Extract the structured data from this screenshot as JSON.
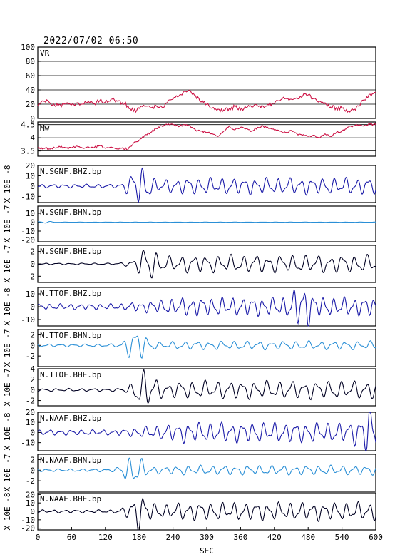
{
  "header": {
    "datetime": "2022/07/02 06:50"
  },
  "chart_data": {
    "type": "line",
    "x": {
      "label": "SEC",
      "range": [
        0,
        600
      ],
      "ticks": [
        0,
        60,
        120,
        180,
        240,
        300,
        360,
        420,
        480,
        540,
        600
      ]
    },
    "panels": [
      {
        "label": "VR",
        "ylabel": "",
        "ylim": [
          0,
          100
        ],
        "yticks": [
          0,
          20,
          40,
          60,
          80,
          100
        ],
        "grid": true,
        "color": "#cc1144",
        "x": [
          0,
          10,
          20,
          30,
          40,
          50,
          60,
          70,
          80,
          90,
          100,
          110,
          120,
          130,
          140,
          150,
          160,
          170,
          180,
          190,
          200,
          210,
          220,
          230,
          240,
          250,
          260,
          270,
          280,
          290,
          300,
          310,
          320,
          330,
          340,
          350,
          360,
          370,
          380,
          390,
          400,
          410,
          420,
          430,
          440,
          450,
          460,
          470,
          480,
          490,
          500,
          510,
          520,
          530,
          540,
          550,
          560,
          570,
          580,
          590,
          600
        ],
        "values": [
          18,
          24,
          23,
          18,
          19,
          20,
          19,
          22,
          20,
          24,
          21,
          25,
          23,
          27,
          25,
          22,
          18,
          10,
          14,
          17,
          15,
          18,
          16,
          22,
          27,
          31,
          38,
          40,
          32,
          23,
          20,
          15,
          13,
          12,
          14,
          16,
          12,
          15,
          16,
          18,
          17,
          19,
          21,
          25,
          28,
          27,
          29,
          31,
          33,
          28,
          24,
          22,
          16,
          15,
          14,
          9,
          12,
          17,
          26,
          34,
          36
        ]
      },
      {
        "label": "Mw",
        "ylabel": "",
        "ylim": [
          3.3,
          4.6
        ],
        "yticks": [
          3.5,
          4.0,
          4.5
        ],
        "grid": true,
        "color": "#cc1144",
        "x": [
          0,
          10,
          20,
          30,
          40,
          50,
          60,
          70,
          80,
          90,
          100,
          110,
          120,
          130,
          140,
          150,
          160,
          170,
          180,
          190,
          200,
          210,
          220,
          230,
          240,
          250,
          260,
          270,
          280,
          290,
          300,
          310,
          320,
          330,
          340,
          350,
          360,
          370,
          380,
          390,
          400,
          410,
          420,
          430,
          440,
          450,
          460,
          470,
          480,
          490,
          500,
          510,
          520,
          530,
          540,
          550,
          560,
          570,
          580,
          590,
          600
        ],
        "values": [
          3.63,
          3.6,
          3.58,
          3.62,
          3.65,
          3.6,
          3.62,
          3.68,
          3.6,
          3.65,
          3.62,
          3.7,
          3.6,
          3.65,
          3.58,
          3.62,
          3.55,
          3.8,
          3.9,
          4.1,
          4.2,
          4.35,
          4.45,
          4.5,
          4.5,
          4.42,
          4.5,
          4.45,
          4.3,
          4.25,
          4.2,
          4.15,
          4.05,
          4.25,
          4.45,
          4.3,
          4.4,
          4.35,
          4.25,
          4.4,
          4.45,
          4.35,
          4.3,
          4.25,
          4.2,
          4.28,
          4.15,
          4.1,
          4.05,
          4.1,
          4.0,
          4.15,
          4.05,
          4.2,
          4.25,
          4.4,
          4.45,
          4.5,
          4.48,
          4.52,
          4.5
        ]
      },
      {
        "label": "N.SGNF.BHZ.bp",
        "ylabel": "X 10E -8",
        "ylim": [
          -16,
          20
        ],
        "yticks": [
          -10,
          0,
          10,
          20
        ],
        "color": "#1a1aa8",
        "waveform": {
          "base": 2.0,
          "late": 9.0,
          "period": 20,
          "burst_at": 180,
          "burst_amp": 18
        }
      },
      {
        "label": "N.SGNF.BHN.bp",
        "ylabel": "X 10E -7",
        "ylim": [
          -22,
          18
        ],
        "yticks": [
          -20,
          -10,
          0,
          10
        ],
        "color": "#2a8fd6",
        "waveform": {
          "base": 0.2,
          "late": 0.2,
          "period": 25,
          "burst_at": 5,
          "burst_amp": 1.5
        }
      },
      {
        "label": "N.SGNF.BHE.bp",
        "ylabel": "X 10E -7",
        "ylim": [
          -3,
          3
        ],
        "yticks": [
          -2,
          0,
          2
        ],
        "color": "#000022",
        "waveform": {
          "base": 0.15,
          "late": 1.6,
          "period": 22,
          "burst_at": 195,
          "burst_amp": 2.4
        }
      },
      {
        "label": "N.TTOF.BHZ.bp",
        "ylabel": "X 10E -8",
        "ylim": [
          -15,
          15
        ],
        "yticks": [
          -10,
          0,
          10
        ],
        "color": "#1a1aa8",
        "waveform": {
          "base": 2.5,
          "late": 8.0,
          "period": 18,
          "burst_at": 470,
          "burst_amp": 12
        }
      },
      {
        "label": "N.TTOF.BHN.bp",
        "ylabel": "X 10E -7",
        "ylim": [
          -4,
          3
        ],
        "yticks": [
          -2,
          0,
          2
        ],
        "color": "#2a8fd6",
        "waveform": {
          "base": 0.3,
          "late": 0.9,
          "period": 22,
          "burst_at": 175,
          "burst_amp": 3.2
        }
      },
      {
        "label": "N.TTOF.BHE.bp",
        "ylabel": "X 10E -7",
        "ylim": [
          -3,
          4
        ],
        "yticks": [
          -2,
          0,
          2,
          4
        ],
        "color": "#000022",
        "waveform": {
          "base": 0.3,
          "late": 1.9,
          "period": 22,
          "burst_at": 190,
          "burst_amp": 3.5
        }
      },
      {
        "label": "N.NAAF.BHZ.bp",
        "ylabel": "X 10E -8",
        "ylim": [
          -18,
          20
        ],
        "yticks": [
          -10,
          0,
          10,
          20
        ],
        "color": "#1a1aa8",
        "waveform": {
          "base": 3.0,
          "late": 11.0,
          "period": 19,
          "burst_at": 590,
          "burst_amp": 18
        }
      },
      {
        "label": "N.NAAF.BHN.bp",
        "ylabel": "X 10E -7",
        "ylim": [
          -4,
          3
        ],
        "yticks": [
          -2,
          0,
          2
        ],
        "color": "#2a8fd6",
        "waveform": {
          "base": 0.3,
          "late": 1.0,
          "period": 21,
          "burst_at": 170,
          "burst_amp": 3.0
        }
      },
      {
        "label": "N.NAAF.BHE.bp",
        "ylabel": "X 10E -8",
        "ylim": [
          -22,
          22
        ],
        "yticks": [
          -20,
          -10,
          0,
          10,
          20
        ],
        "color": "#000022",
        "waveform": {
          "base": 2.0,
          "late": 12.0,
          "period": 20,
          "burst_at": 180,
          "burst_amp": 20
        }
      }
    ]
  }
}
